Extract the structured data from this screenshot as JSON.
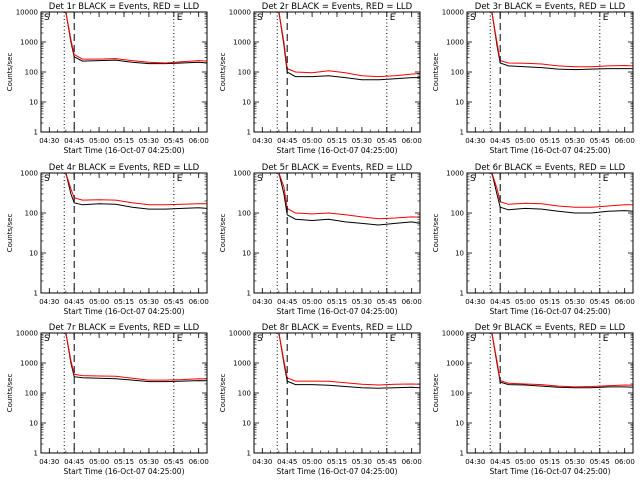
{
  "figure": {
    "background": "#ffffff",
    "axis_color": "#000000",
    "events_color": "#000000",
    "lld_color": "#ff0000"
  },
  "chart_data": [
    {
      "type": "line",
      "title": "Det 1r BLACK = Events, RED = LLD",
      "xlabel": "Start Time (16-Oct-07 04:25:00)",
      "ylabel": "Counts/sec",
      "yscale": "log",
      "ylim": [
        1,
        10000
      ],
      "xlim": [
        "04:25",
        "06:05"
      ],
      "x_tick_labels": [
        "04:30",
        "04:45",
        "05:00",
        "05:15",
        "05:30",
        "05:45",
        "06:00"
      ],
      "y_tick_labels": [
        "1",
        "10",
        "100",
        "1000",
        "10000"
      ],
      "markers": [
        {
          "label": "S",
          "time": "04:25",
          "style": "none"
        },
        {
          "time": "04:39",
          "style": "dotted"
        },
        {
          "time": "04:45",
          "style": "dashed"
        },
        {
          "label": "E",
          "time": "05:45",
          "style": "dotted"
        }
      ],
      "series": [
        {
          "name": "Events",
          "color": "black",
          "x": [
            "04:40",
            "04:43",
            "04:45",
            "04:50",
            "05:00",
            "05:10",
            "05:20",
            "05:30",
            "05:40",
            "05:50",
            "06:00",
            "06:05"
          ],
          "values": [
            10000,
            1000,
            320,
            230,
            240,
            250,
            210,
            190,
            190,
            200,
            210,
            200
          ]
        },
        {
          "name": "LLD",
          "color": "red",
          "x": [
            "04:40",
            "04:43",
            "04:45",
            "04:50",
            "05:00",
            "05:10",
            "05:20",
            "05:30",
            "05:40",
            "05:50",
            "06:00",
            "06:05"
          ],
          "values": [
            10000,
            1200,
            380,
            270,
            270,
            280,
            240,
            210,
            200,
            220,
            240,
            230
          ]
        }
      ]
    },
    {
      "type": "line",
      "title": "Det 2r BLACK = Events, RED = LLD",
      "xlabel": "Start Time (16-Oct-07 04:25:00)",
      "ylabel": "Counts/sec",
      "yscale": "log",
      "ylim": [
        1,
        10000
      ],
      "xlim": [
        "04:25",
        "06:05"
      ],
      "x_tick_labels": [
        "04:30",
        "04:45",
        "05:00",
        "05:15",
        "05:30",
        "05:45",
        "06:00"
      ],
      "y_tick_labels": [
        "1",
        "10",
        "100",
        "1000",
        "10000"
      ],
      "markers": [
        {
          "label": "S",
          "time": "04:25",
          "style": "none"
        },
        {
          "time": "04:39",
          "style": "dotted"
        },
        {
          "time": "04:45",
          "style": "dashed"
        },
        {
          "label": "E",
          "time": "05:45",
          "style": "dotted"
        }
      ],
      "series": [
        {
          "name": "Events",
          "color": "black",
          "x": [
            "04:40",
            "04:43",
            "04:45",
            "04:50",
            "05:00",
            "05:10",
            "05:20",
            "05:30",
            "05:40",
            "05:50",
            "06:00",
            "06:05"
          ],
          "values": [
            10000,
            800,
            100,
            70,
            70,
            75,
            65,
            55,
            55,
            60,
            65,
            65
          ]
        },
        {
          "name": "LLD",
          "color": "red",
          "x": [
            "04:40",
            "04:43",
            "04:45",
            "04:50",
            "05:00",
            "05:10",
            "05:20",
            "05:30",
            "05:40",
            "05:50",
            "06:00",
            "06:05"
          ],
          "values": [
            10000,
            1000,
            130,
            100,
            95,
            110,
            95,
            75,
            70,
            75,
            85,
            90
          ]
        }
      ]
    },
    {
      "type": "line",
      "title": "Det 3r BLACK = Events, RED = LLD",
      "xlabel": "Start Time (16-Oct-07 04:25:00)",
      "ylabel": "Counts/sec",
      "yscale": "log",
      "ylim": [
        1,
        10000
      ],
      "xlim": [
        "04:25",
        "06:05"
      ],
      "x_tick_labels": [
        "04:30",
        "04:45",
        "05:00",
        "05:15",
        "05:30",
        "05:45",
        "06:00"
      ],
      "y_tick_labels": [
        "1",
        "10",
        "100",
        "1000",
        "10000"
      ],
      "markers": [
        {
          "label": "S",
          "time": "04:25",
          "style": "none"
        },
        {
          "time": "04:39",
          "style": "dotted"
        },
        {
          "time": "04:45",
          "style": "dashed"
        },
        {
          "label": "E",
          "time": "05:45",
          "style": "dotted"
        }
      ],
      "series": [
        {
          "name": "Events",
          "color": "black",
          "x": [
            "04:40",
            "04:43",
            "04:45",
            "04:50",
            "05:00",
            "05:10",
            "05:20",
            "05:30",
            "05:40",
            "05:50",
            "06:00",
            "06:05"
          ],
          "values": [
            10000,
            800,
            200,
            160,
            150,
            140,
            125,
            120,
            125,
            130,
            130,
            130
          ]
        },
        {
          "name": "LLD",
          "color": "red",
          "x": [
            "04:40",
            "04:43",
            "04:45",
            "04:50",
            "05:00",
            "05:10",
            "05:20",
            "05:30",
            "05:40",
            "05:50",
            "06:00",
            "06:05"
          ],
          "values": [
            10000,
            1000,
            240,
            200,
            195,
            185,
            160,
            150,
            150,
            160,
            165,
            160
          ]
        }
      ]
    },
    {
      "type": "line",
      "title": "Det 4r BLACK = Events, RED = LLD",
      "xlabel": "Start Time (16-Oct-07 04:25:00)",
      "ylabel": "Counts/sec",
      "yscale": "log",
      "ylim": [
        1,
        1000
      ],
      "xlim": [
        "04:25",
        "06:05"
      ],
      "x_tick_labels": [
        "04:30",
        "04:45",
        "05:00",
        "05:15",
        "05:30",
        "05:45",
        "06:00"
      ],
      "y_tick_labels": [
        "1",
        "10",
        "100",
        "1000"
      ],
      "markers": [
        {
          "label": "S",
          "time": "04:25",
          "style": "none"
        },
        {
          "time": "04:39",
          "style": "dotted"
        },
        {
          "time": "04:45",
          "style": "dashed"
        },
        {
          "label": "E",
          "time": "05:45",
          "style": "dotted"
        }
      ],
      "series": [
        {
          "name": "Events",
          "color": "black",
          "x": [
            "04:40",
            "04:43",
            "04:45",
            "04:50",
            "05:00",
            "05:10",
            "05:20",
            "05:30",
            "05:40",
            "05:50",
            "06:00",
            "06:05"
          ],
          "values": [
            1000,
            300,
            180,
            160,
            170,
            165,
            140,
            125,
            125,
            130,
            135,
            130
          ]
        },
        {
          "name": "LLD",
          "color": "red",
          "x": [
            "04:40",
            "04:43",
            "04:45",
            "04:50",
            "05:00",
            "05:10",
            "05:20",
            "05:30",
            "05:40",
            "05:50",
            "06:00",
            "06:05"
          ],
          "values": [
            1000,
            400,
            240,
            210,
            215,
            210,
            180,
            160,
            160,
            165,
            170,
            170
          ]
        }
      ]
    },
    {
      "type": "line",
      "title": "Det 5r BLACK = Events, RED = LLD",
      "xlabel": "Start Time (16-Oct-07 04:25:00)",
      "ylabel": "Counts/sec",
      "yscale": "log",
      "ylim": [
        1,
        1000
      ],
      "xlim": [
        "04:25",
        "06:05"
      ],
      "x_tick_labels": [
        "04:30",
        "04:45",
        "05:00",
        "05:15",
        "05:30",
        "05:45",
        "06:00"
      ],
      "y_tick_labels": [
        "1",
        "10",
        "100",
        "1000"
      ],
      "markers": [
        {
          "label": "S",
          "time": "04:25",
          "style": "none"
        },
        {
          "time": "04:39",
          "style": "dotted"
        },
        {
          "time": "04:45",
          "style": "dashed"
        },
        {
          "label": "E",
          "time": "05:45",
          "style": "dotted"
        }
      ],
      "series": [
        {
          "name": "Events",
          "color": "black",
          "x": [
            "04:40",
            "04:43",
            "04:45",
            "04:50",
            "05:00",
            "05:10",
            "05:20",
            "05:30",
            "05:40",
            "05:50",
            "06:00",
            "06:05"
          ],
          "values": [
            1000,
            300,
            90,
            70,
            65,
            70,
            60,
            55,
            50,
            55,
            60,
            55
          ]
        },
        {
          "name": "LLD",
          "color": "red",
          "x": [
            "04:40",
            "04:43",
            "04:45",
            "04:50",
            "05:00",
            "05:10",
            "05:20",
            "05:30",
            "05:40",
            "05:50",
            "06:00",
            "06:05"
          ],
          "values": [
            1000,
            450,
            130,
            100,
            95,
            100,
            90,
            80,
            72,
            75,
            80,
            78
          ]
        }
      ]
    },
    {
      "type": "line",
      "title": "Det 6r BLACK = Events, RED = LLD",
      "xlabel": "Start Time (16-Oct-07 04:25:00)",
      "ylabel": "Counts/sec",
      "yscale": "log",
      "ylim": [
        1,
        1000
      ],
      "xlim": [
        "04:25",
        "06:05"
      ],
      "x_tick_labels": [
        "04:30",
        "04:45",
        "05:00",
        "05:15",
        "05:30",
        "05:45",
        "06:00"
      ],
      "y_tick_labels": [
        "1",
        "10",
        "100",
        "1000"
      ],
      "markers": [
        {
          "label": "S",
          "time": "04:25",
          "style": "none"
        },
        {
          "time": "04:39",
          "style": "dotted"
        },
        {
          "time": "04:45",
          "style": "dashed"
        },
        {
          "label": "E",
          "time": "05:45",
          "style": "dotted"
        }
      ],
      "series": [
        {
          "name": "Events",
          "color": "black",
          "x": [
            "04:40",
            "04:43",
            "04:45",
            "04:50",
            "05:00",
            "05:10",
            "05:20",
            "05:30",
            "05:40",
            "05:50",
            "06:00",
            "06:05"
          ],
          "values": [
            1000,
            300,
            140,
            120,
            130,
            125,
            110,
            100,
            100,
            110,
            115,
            110
          ]
        },
        {
          "name": "LLD",
          "color": "red",
          "x": [
            "04:40",
            "04:43",
            "04:45",
            "04:50",
            "05:00",
            "05:10",
            "05:20",
            "05:30",
            "05:40",
            "05:50",
            "06:00",
            "06:05"
          ],
          "values": [
            1000,
            420,
            190,
            165,
            175,
            170,
            150,
            140,
            140,
            150,
            160,
            160
          ]
        }
      ]
    },
    {
      "type": "line",
      "title": "Det 7r BLACK = Events, RED = LLD",
      "xlabel": "Start Time (16-Oct-07 04:25:00)",
      "ylabel": "Counts/sec",
      "yscale": "log",
      "ylim": [
        1,
        10000
      ],
      "xlim": [
        "04:25",
        "06:05"
      ],
      "x_tick_labels": [
        "04:30",
        "04:45",
        "05:00",
        "05:15",
        "05:30",
        "05:45",
        "06:00"
      ],
      "y_tick_labels": [
        "1",
        "10",
        "100",
        "1000",
        "10000"
      ],
      "markers": [
        {
          "label": "S",
          "time": "04:25",
          "style": "none"
        },
        {
          "time": "04:39",
          "style": "dotted"
        },
        {
          "time": "04:45",
          "style": "dashed"
        },
        {
          "label": "E",
          "time": "05:45",
          "style": "dotted"
        }
      ],
      "series": [
        {
          "name": "Events",
          "color": "black",
          "x": [
            "04:40",
            "04:43",
            "04:45",
            "04:50",
            "05:00",
            "05:10",
            "05:20",
            "05:30",
            "05:40",
            "05:50",
            "06:00",
            "06:05"
          ],
          "values": [
            10000,
            1000,
            350,
            320,
            310,
            300,
            270,
            240,
            240,
            250,
            260,
            255
          ]
        },
        {
          "name": "LLD",
          "color": "red",
          "x": [
            "04:40",
            "04:43",
            "04:45",
            "04:50",
            "05:00",
            "05:10",
            "05:20",
            "05:30",
            "05:40",
            "05:50",
            "06:00",
            "06:05"
          ],
          "values": [
            10000,
            1200,
            420,
            380,
            370,
            360,
            310,
            270,
            270,
            280,
            300,
            295
          ]
        }
      ]
    },
    {
      "type": "line",
      "title": "Det 8r BLACK = Events, RED = LLD",
      "xlabel": "Start Time (16-Oct-07 04:25:00)",
      "ylabel": "Counts/sec",
      "yscale": "log",
      "ylim": [
        1,
        10000
      ],
      "xlim": [
        "04:25",
        "06:05"
      ],
      "x_tick_labels": [
        "04:30",
        "04:45",
        "05:00",
        "05:15",
        "05:30",
        "05:45",
        "06:00"
      ],
      "y_tick_labels": [
        "1",
        "10",
        "100",
        "1000",
        "10000"
      ],
      "markers": [
        {
          "label": "S",
          "time": "04:25",
          "style": "none"
        },
        {
          "time": "04:39",
          "style": "dotted"
        },
        {
          "time": "04:45",
          "style": "dashed"
        },
        {
          "label": "E",
          "time": "05:45",
          "style": "dotted"
        }
      ],
      "series": [
        {
          "name": "Events",
          "color": "black",
          "x": [
            "04:40",
            "04:43",
            "04:45",
            "04:50",
            "05:00",
            "05:10",
            "05:20",
            "05:30",
            "05:40",
            "05:50",
            "06:00",
            "06:05"
          ],
          "values": [
            10000,
            1000,
            250,
            190,
            190,
            180,
            165,
            150,
            145,
            150,
            155,
            150
          ]
        },
        {
          "name": "LLD",
          "color": "red",
          "x": [
            "04:40",
            "04:43",
            "04:45",
            "04:50",
            "05:00",
            "05:10",
            "05:20",
            "05:30",
            "05:40",
            "05:50",
            "06:00",
            "06:05"
          ],
          "values": [
            10000,
            1200,
            320,
            250,
            250,
            245,
            220,
            195,
            185,
            195,
            200,
            195
          ]
        }
      ]
    },
    {
      "type": "line",
      "title": "Det 9r BLACK = Events, RED = LLD",
      "xlabel": "Start Time (16-Oct-07 04:25:00)",
      "ylabel": "Counts/sec",
      "yscale": "log",
      "ylim": [
        1,
        10000
      ],
      "xlim": [
        "04:25",
        "06:05"
      ],
      "x_tick_labels": [
        "04:30",
        "04:45",
        "05:00",
        "05:15",
        "05:30",
        "05:45",
        "06:00"
      ],
      "y_tick_labels": [
        "1",
        "10",
        "100",
        "1000",
        "10000"
      ],
      "markers": [
        {
          "label": "S",
          "time": "04:25",
          "style": "none"
        },
        {
          "time": "04:39",
          "style": "dotted"
        },
        {
          "time": "04:45",
          "style": "dashed"
        },
        {
          "label": "E",
          "time": "05:45",
          "style": "dotted"
        }
      ],
      "series": [
        {
          "name": "Events",
          "color": "black",
          "x": [
            "04:40",
            "04:43",
            "04:45",
            "04:50",
            "05:00",
            "05:10",
            "05:20",
            "05:30",
            "05:40",
            "05:50",
            "06:00",
            "06:05"
          ],
          "values": [
            10000,
            1000,
            230,
            190,
            185,
            170,
            155,
            150,
            150,
            160,
            160,
            155
          ]
        },
        {
          "name": "LLD",
          "color": "red",
          "x": [
            "04:40",
            "04:43",
            "04:45",
            "04:50",
            "05:00",
            "05:10",
            "05:20",
            "05:30",
            "05:40",
            "05:50",
            "06:00",
            "06:05"
          ],
          "values": [
            10000,
            1200,
            260,
            210,
            200,
            190,
            170,
            160,
            165,
            175,
            185,
            180
          ]
        }
      ]
    }
  ]
}
